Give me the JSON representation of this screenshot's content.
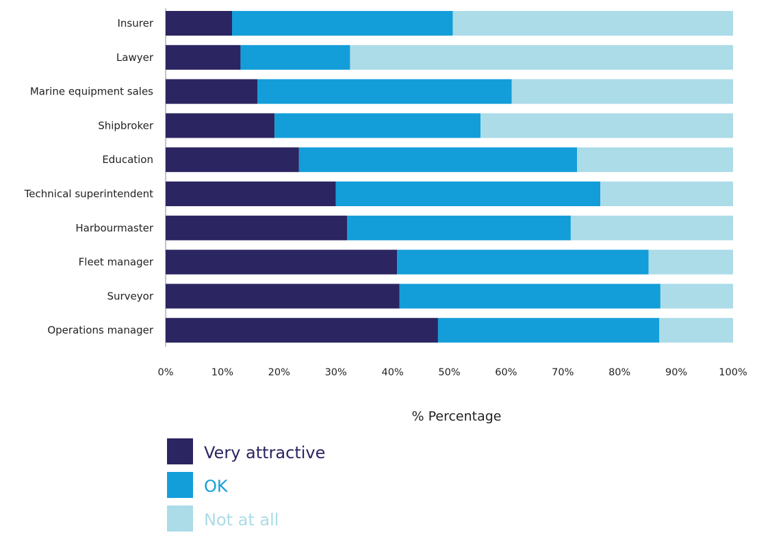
{
  "chart_data": {
    "type": "bar",
    "orientation": "horizontal",
    "stacked": true,
    "title": "",
    "xlabel": "% Percentage",
    "ylabel": "",
    "xlim": [
      0,
      100
    ],
    "x_ticks": [
      "0%",
      "10%",
      "20%",
      "30%",
      "40%",
      "50%",
      "60%",
      "70%",
      "80%",
      "90%",
      "100%"
    ],
    "grid": false,
    "legend_position": "bottom-left",
    "categories": [
      "Insurer",
      "Lawyer",
      "Marine equipment sales",
      "Shipbroker",
      "Education",
      "Technical superintendent",
      "Harbourmaster",
      "Fleet manager",
      "Surveyor",
      "Operations manager"
    ],
    "series": [
      {
        "name": "Very attractive",
        "color": "#2b2561",
        "values": [
          11.7,
          13.2,
          16.2,
          19.2,
          23.5,
          30.0,
          32.0,
          40.8,
          41.2,
          48.0
        ]
      },
      {
        "name": "OK",
        "color": "#139ed9",
        "values": [
          38.9,
          19.3,
          44.8,
          36.3,
          49.0,
          46.6,
          39.4,
          44.3,
          46.0,
          39.0
        ]
      },
      {
        "name": "Not at all",
        "color": "#abdce8",
        "values": [
          49.4,
          67.5,
          39.0,
          44.5,
          27.5,
          23.4,
          28.6,
          14.9,
          12.8,
          13.0
        ]
      }
    ]
  }
}
